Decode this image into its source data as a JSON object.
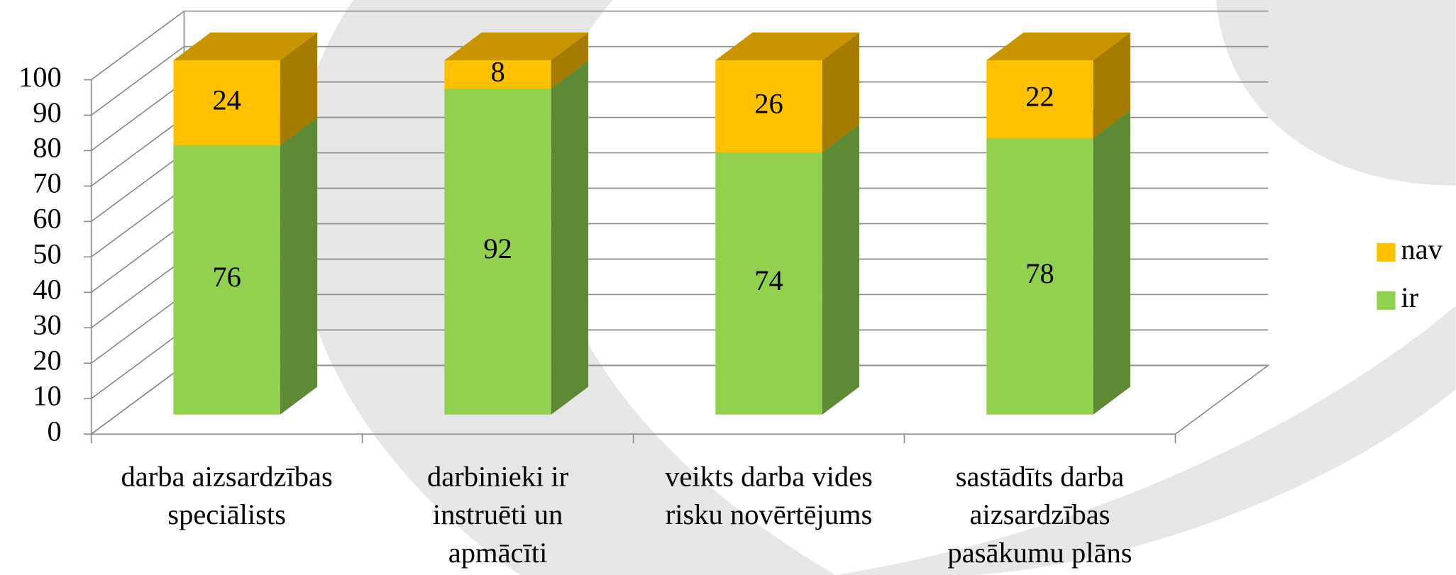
{
  "chart_data": {
    "type": "bar3d_stacked",
    "categories": [
      [
        "darba aizsardzības",
        "speciālists"
      ],
      [
        "darbinieki ir",
        "instruēti un",
        "apmācīti"
      ],
      [
        "veikts darba vides",
        "risku novērtējums"
      ],
      [
        "sastādīts darba",
        "aizsardzības",
        "pasākumu plāns"
      ]
    ],
    "series": [
      {
        "name": "ir",
        "color": "#92d050",
        "side_color": "#5e8a35",
        "values": [
          76,
          92,
          74,
          78
        ]
      },
      {
        "name": "nav",
        "color": "#ffc000",
        "side_color": "#a67c00",
        "top_color": "#c89400",
        "values": [
          24,
          8,
          26,
          22
        ]
      }
    ],
    "ylim": [
      0,
      100
    ],
    "yticks": [
      0,
      10,
      20,
      30,
      40,
      50,
      60,
      70,
      80,
      90,
      100
    ],
    "grid": true,
    "legend": "right"
  }
}
